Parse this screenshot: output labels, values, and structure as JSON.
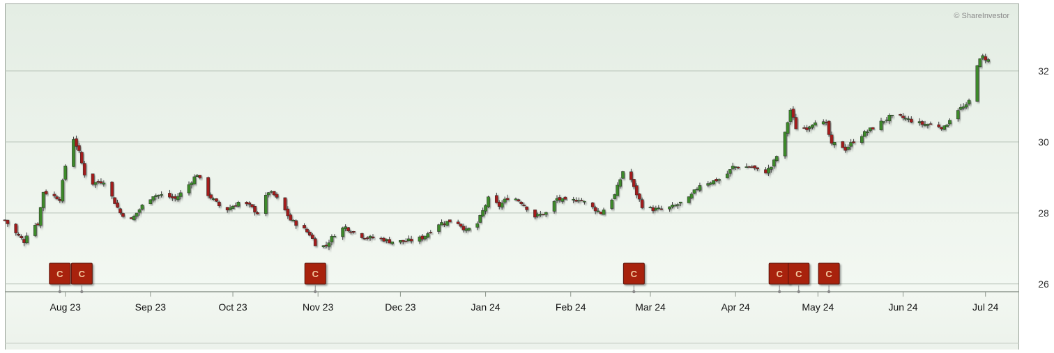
{
  "watermark": "© ShareInvestor",
  "chart_data": {
    "type": "candlestick",
    "title": "",
    "xlabel": "",
    "ylabel": "",
    "ylim": [
      25.8,
      33.9
    ],
    "grid": true,
    "y_ticks": [
      26,
      28,
      30,
      32
    ],
    "x_ticks": [
      {
        "label": "Aug 23",
        "day": 22
      },
      {
        "label": "Sep 23",
        "day": 53
      },
      {
        "label": "Oct 23",
        "day": 83
      },
      {
        "label": "Nov 23",
        "day": 114
      },
      {
        "label": "Dec 23",
        "day": 144
      },
      {
        "label": "Jan 24",
        "day": 175
      },
      {
        "label": "Feb 24",
        "day": 206
      },
      {
        "label": "Mar 24",
        "day": 235
      },
      {
        "label": "Apr 24",
        "day": 266
      },
      {
        "label": "May 24",
        "day": 296
      },
      {
        "label": "Jun 24",
        "day": 327
      },
      {
        "label": "Jul 24",
        "day": 357
      }
    ],
    "colors": {
      "up": "#3d8a2a",
      "down": "#a31f1a",
      "event_marker": "#a82210"
    },
    "event_markers": [
      {
        "label": "C",
        "day": 20
      },
      {
        "label": "C",
        "day": 28
      },
      {
        "label": "C",
        "day": 113
      },
      {
        "label": "C",
        "day": 229
      },
      {
        "label": "C",
        "day": 282
      },
      {
        "label": "C",
        "day": 289
      },
      {
        "label": "C",
        "day": 300
      }
    ],
    "close_path": [
      [
        0,
        27.8
      ],
      [
        3,
        27.5
      ],
      [
        7,
        27.2
      ],
      [
        9,
        27.6
      ],
      [
        12,
        27.7
      ],
      [
        14,
        28.6
      ],
      [
        20,
        28.4
      ],
      [
        23,
        29.8
      ],
      [
        25,
        30.1
      ],
      [
        27,
        29.7
      ],
      [
        30,
        28.8
      ],
      [
        36,
        28.9
      ],
      [
        38,
        28.6
      ],
      [
        42,
        28.0
      ],
      [
        46,
        27.8
      ],
      [
        50,
        28.2
      ],
      [
        54,
        28.5
      ],
      [
        58,
        28.5
      ],
      [
        62,
        28.4
      ],
      [
        66,
        28.7
      ],
      [
        70,
        29.1
      ],
      [
        73,
        28.6
      ],
      [
        78,
        28.2
      ],
      [
        81,
        28.1
      ],
      [
        85,
        28.3
      ],
      [
        89,
        28.2
      ],
      [
        92,
        28.0
      ],
      [
        96,
        28.6
      ],
      [
        98,
        28.5
      ],
      [
        101,
        28.2
      ],
      [
        104,
        27.8
      ],
      [
        108,
        27.6
      ],
      [
        111,
        27.4
      ],
      [
        114,
        27.0
      ],
      [
        117,
        27.1
      ],
      [
        121,
        27.5
      ],
      [
        124,
        27.6
      ],
      [
        128,
        27.4
      ],
      [
        132,
        27.3
      ],
      [
        136,
        27.3
      ],
      [
        140,
        27.2
      ],
      [
        146,
        27.2
      ],
      [
        152,
        27.3
      ],
      [
        158,
        27.7
      ],
      [
        164,
        27.8
      ],
      [
        168,
        27.5
      ],
      [
        172,
        27.7
      ],
      [
        176,
        28.4
      ],
      [
        180,
        28.2
      ],
      [
        184,
        28.5
      ],
      [
        188,
        28.3
      ],
      [
        193,
        27.9
      ],
      [
        197,
        28.0
      ],
      [
        201,
        28.4
      ],
      [
        205,
        28.3
      ],
      [
        209,
        28.4
      ],
      [
        213,
        28.2
      ],
      [
        217,
        28.0
      ],
      [
        222,
        28.5
      ],
      [
        226,
        29.4
      ],
      [
        229,
        28.7
      ],
      [
        232,
        28.2
      ],
      [
        236,
        28.1
      ],
      [
        240,
        28.1
      ],
      [
        244,
        28.2
      ],
      [
        249,
        28.4
      ],
      [
        253,
        28.8
      ],
      [
        258,
        28.9
      ],
      [
        262,
        29.0
      ],
      [
        265,
        29.3
      ],
      [
        268,
        29.3
      ],
      [
        272,
        29.3
      ],
      [
        276,
        29.1
      ],
      [
        279,
        29.3
      ],
      [
        283,
        29.9
      ],
      [
        286,
        30.9
      ],
      [
        288,
        30.4
      ],
      [
        292,
        30.4
      ],
      [
        295,
        30.6
      ],
      [
        299,
        30.5
      ],
      [
        301,
        29.9
      ],
      [
        303,
        30.0
      ],
      [
        306,
        29.8
      ],
      [
        310,
        30.1
      ],
      [
        314,
        30.3
      ],
      [
        318,
        30.5
      ],
      [
        322,
        30.7
      ],
      [
        326,
        30.7
      ],
      [
        330,
        30.6
      ],
      [
        334,
        30.5
      ],
      [
        338,
        30.5
      ],
      [
        342,
        30.4
      ],
      [
        346,
        30.9
      ],
      [
        350,
        31.0
      ],
      [
        352,
        31.3
      ],
      [
        354,
        32.2
      ],
      [
        356,
        32.4
      ],
      [
        358,
        32.3
      ]
    ],
    "start_date": "2023-07-05",
    "end_date": "2024-07-08"
  }
}
